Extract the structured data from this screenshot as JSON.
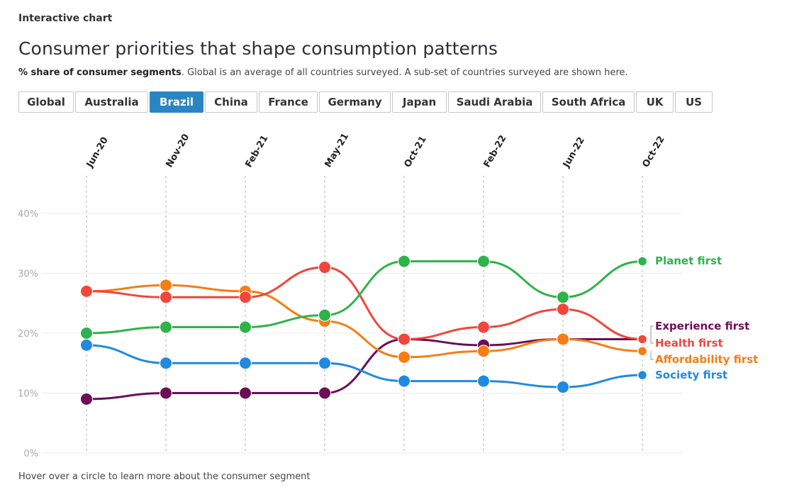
{
  "header": {
    "label": "Interactive chart",
    "title": "Consumer priorities that shape consumption patterns",
    "subtitle_bold": "% share of consumer segments",
    "subtitle_rest": ". Global is an average of all countries surveyed. A sub-set of countries surveyed are shown here."
  },
  "tabs": [
    {
      "label": "Global",
      "active": false
    },
    {
      "label": "Australia",
      "active": false
    },
    {
      "label": "Brazil",
      "active": true
    },
    {
      "label": "China",
      "active": false
    },
    {
      "label": "France",
      "active": false
    },
    {
      "label": "Germany",
      "active": false
    },
    {
      "label": "Japan",
      "active": false
    },
    {
      "label": "Saudi Arabia",
      "active": false
    },
    {
      "label": "South Africa",
      "active": false
    },
    {
      "label": "UK",
      "active": false
    },
    {
      "label": "US",
      "active": false
    }
  ],
  "footnote": "Hover over a circle to learn more about the consumer segment",
  "chart_data": {
    "type": "line",
    "categories": [
      "Jun-20",
      "Nov-20",
      "Feb-21",
      "May-21",
      "Oct-21",
      "Feb-22",
      "Jun-22",
      "Oct-22"
    ],
    "ylim": [
      0,
      40
    ],
    "yticks": [
      0,
      10,
      20,
      30,
      40
    ],
    "ytick_labels": [
      "0%",
      "10%",
      "20%",
      "30%",
      "40%"
    ],
    "xlabel": "",
    "ylabel": "",
    "series": [
      {
        "name": "Planet first",
        "color": "#2db34a",
        "values": [
          20,
          21,
          21,
          23,
          32,
          32,
          26,
          32
        ]
      },
      {
        "name": "Experience first",
        "color": "#6b0f56",
        "values": [
          9,
          10,
          10,
          10,
          19,
          18,
          19,
          19
        ]
      },
      {
        "name": "Health first",
        "color": "#f0463c",
        "values": [
          27,
          26,
          26,
          31,
          19,
          21,
          24,
          19
        ]
      },
      {
        "name": "Affordability first",
        "color": "#f57d14",
        "values": [
          27,
          28,
          27,
          22,
          16,
          17,
          19,
          17
        ]
      },
      {
        "name": "Society first",
        "color": "#1f8ae0",
        "values": [
          18,
          15,
          15,
          15,
          12,
          12,
          11,
          13
        ]
      }
    ]
  }
}
